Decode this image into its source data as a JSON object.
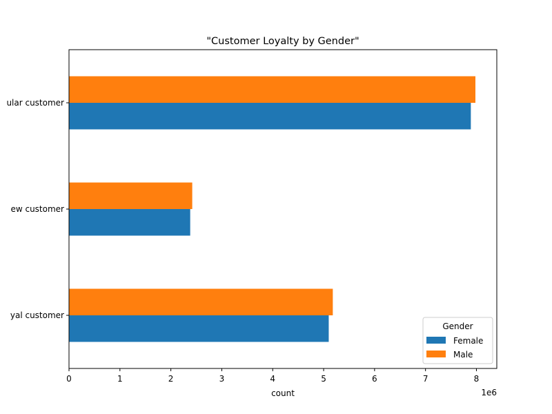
{
  "chart_data": {
    "type": "bar",
    "orientation": "horizontal",
    "title": "\"Customer Loyalty by Gender\"",
    "xlabel": "count",
    "ylabel": "",
    "x_scale_label": "1e6",
    "xlim": [
      0,
      8.4
    ],
    "x_ticks": [
      "0",
      "1",
      "2",
      "3",
      "4",
      "5",
      "6",
      "7",
      "8"
    ],
    "categories_display": [
      "ular customer",
      "ew customer",
      "yal customer"
    ],
    "series": [
      {
        "name": "Female",
        "color": "#1f77b4",
        "values": [
          7.89,
          2.38,
          5.1
        ]
      },
      {
        "name": "Male",
        "color": "#ff7f0e",
        "values": [
          7.98,
          2.42,
          5.18
        ]
      }
    ],
    "legend": {
      "title": "Gender",
      "position": "bottom-right"
    },
    "grid": false
  }
}
